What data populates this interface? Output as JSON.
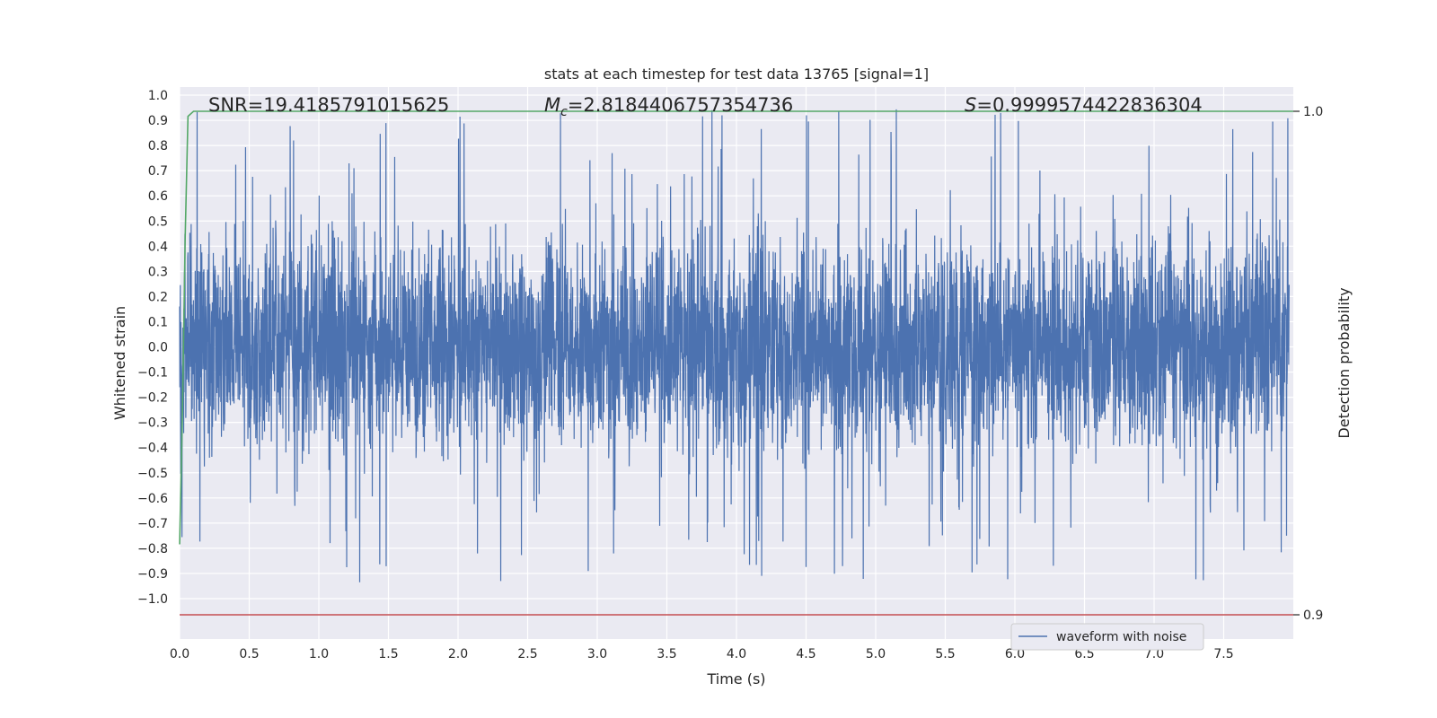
{
  "chart_data": {
    "type": "line",
    "title": "stats at each timestep for test data 13765 [signal=1]",
    "xlabel": "Time (s)",
    "ylabel": "Whitened strain",
    "y2label": "Detection probability",
    "xlim": [
      0.0,
      8.0
    ],
    "ylim": [
      -1.1,
      1.05
    ],
    "y2lim": [
      0.9,
      1.0
    ],
    "x_ticks": [
      "0.0",
      "0.5",
      "1.0",
      "1.5",
      "2.0",
      "2.5",
      "3.0",
      "3.5",
      "4.0",
      "4.5",
      "5.0",
      "5.5",
      "6.0",
      "6.5",
      "7.0",
      "7.5"
    ],
    "y_ticks": [
      "1.0",
      "0.9",
      "0.8",
      "0.7",
      "0.6",
      "0.5",
      "0.4",
      "0.3",
      "0.2",
      "0.1",
      "0.0",
      "-0.1",
      "-0.2",
      "-0.3",
      "-0.4",
      "-0.5",
      "-0.6",
      "-0.7",
      "-0.8",
      "-0.9",
      "-1.0"
    ],
    "y2_ticks": [
      "1.0",
      "0.9"
    ],
    "grid": true,
    "legend_position": "lower-right",
    "annotations": {
      "snr": "SNR=19.4185791015625",
      "mc_symbol": "M",
      "mc_sub": "c",
      "mc_value": "=2.8184406757354736",
      "s_symbol": "S",
      "s_value": "=0.9999574422836304"
    },
    "series": [
      {
        "name": "waveform with noise",
        "color": "#4c72b0",
        "axis": "left",
        "description": "dense noisy waveform spanning approx -1.0 to 0.95 across 0–8 s",
        "envelope_max": 0.95,
        "envelope_min": -1.0
      },
      {
        "color": "#55a868",
        "axis": "right",
        "x": [
          0.0,
          0.02,
          0.04,
          0.06,
          0.1,
          0.2,
          8.0
        ],
        "y": [
          0.914,
          0.94,
          0.975,
          0.999,
          1.0,
          1.0,
          1.0
        ]
      },
      {
        "color": "#c44e52",
        "axis": "right",
        "x": [
          0.0,
          8.0
        ],
        "y": [
          0.9,
          0.9
        ]
      }
    ],
    "colors": {
      "axes_bg": "#eaeaf2",
      "grid": "#ffffff",
      "text": "#262626"
    }
  }
}
